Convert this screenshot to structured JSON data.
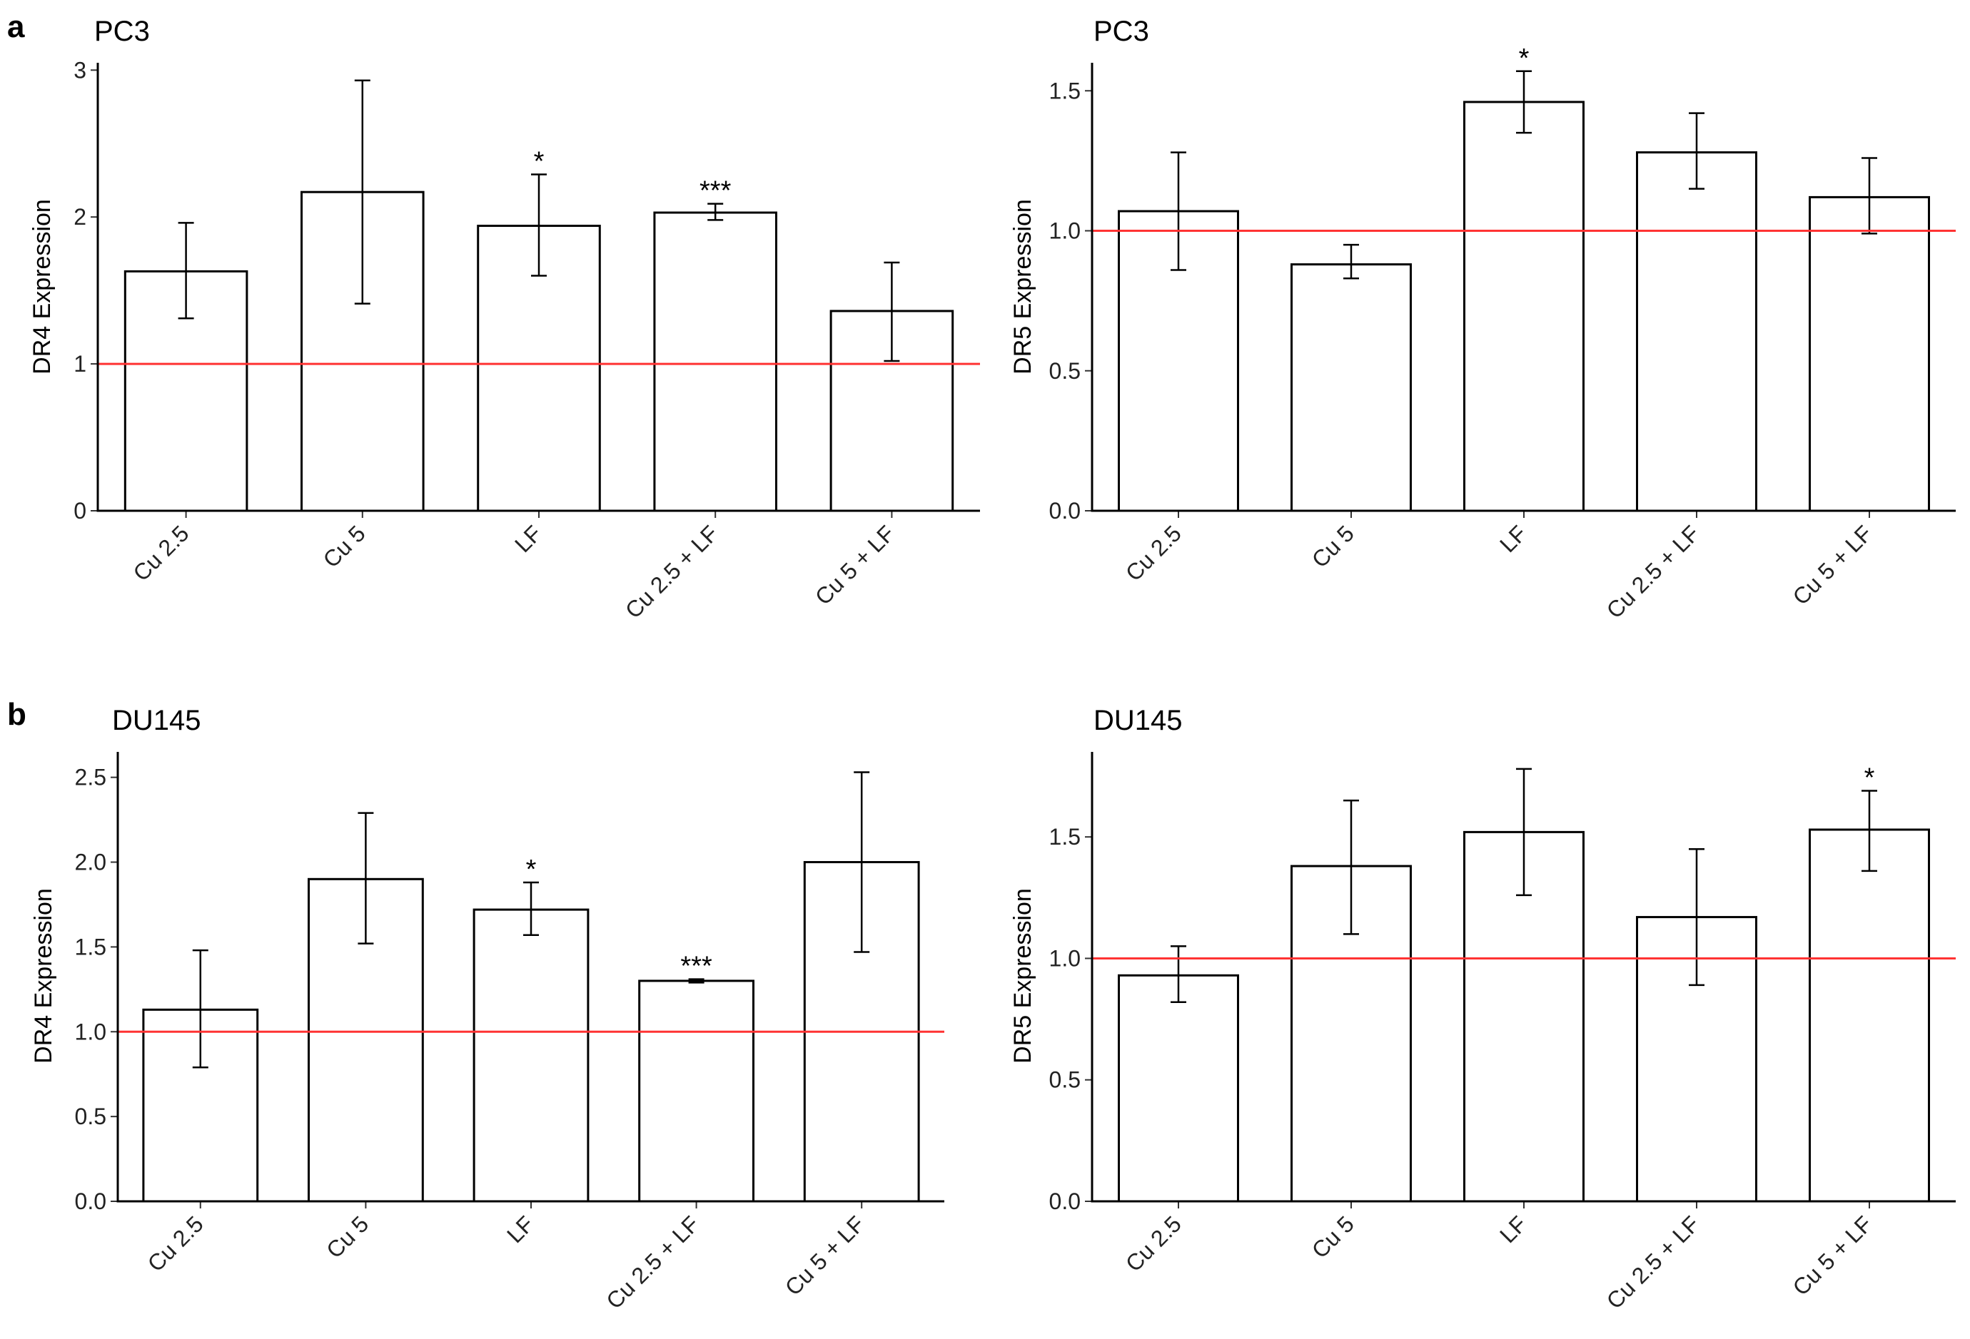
{
  "panels": [
    {
      "letter": "a"
    },
    {
      "letter": "b"
    }
  ],
  "chart_data": [
    {
      "type": "bar",
      "panel": "a",
      "title": "PC3",
      "xlabel": "",
      "ylabel": "DR4 Expression",
      "ylim": [
        0,
        3.05
      ],
      "yticks": [
        0,
        1,
        2,
        3
      ],
      "ytick_labels": [
        "0",
        "1",
        "2",
        "3"
      ],
      "reference_line": 1,
      "reference_color": "#ff3333",
      "categories": [
        "Cu 2.5",
        "Cu 5",
        "LF",
        "Cu 2.5 + LF",
        "Cu 5 + LF"
      ],
      "values": [
        1.63,
        2.17,
        1.94,
        2.03,
        1.36
      ],
      "error_low": [
        1.31,
        1.41,
        1.6,
        1.98,
        1.02
      ],
      "error_high": [
        1.96,
        2.93,
        2.29,
        2.09,
        1.69
      ],
      "significance": [
        "",
        "",
        "*",
        "***",
        ""
      ]
    },
    {
      "type": "bar",
      "panel": "a",
      "title": "PC3",
      "xlabel": "",
      "ylabel": "DR5 Expression",
      "ylim": [
        0,
        1.6
      ],
      "yticks": [
        0,
        0.5,
        1,
        1.5
      ],
      "ytick_labels": [
        "0.0",
        "0.5",
        "1.0",
        "1.5"
      ],
      "reference_line": 1,
      "reference_color": "#ff3333",
      "categories": [
        "Cu 2.5",
        "Cu 5",
        "LF",
        "Cu 2.5 + LF",
        "Cu 5 + LF"
      ],
      "values": [
        1.07,
        0.88,
        1.46,
        1.28,
        1.12
      ],
      "error_low": [
        0.86,
        0.83,
        1.35,
        1.15,
        0.99
      ],
      "error_high": [
        1.28,
        0.95,
        1.57,
        1.42,
        1.26
      ],
      "significance": [
        "",
        "",
        "*",
        "",
        ""
      ]
    },
    {
      "type": "bar",
      "panel": "b",
      "title": "DU145",
      "xlabel": "",
      "ylabel": "DR4 Expression",
      "ylim": [
        0,
        2.65
      ],
      "yticks": [
        0,
        0.5,
        1,
        1.5,
        2,
        2.5
      ],
      "ytick_labels": [
        "0.0",
        "0.5",
        "1.0",
        "1.5",
        "2.0",
        "2.5"
      ],
      "reference_line": 1,
      "reference_color": "#ff3333",
      "categories": [
        "Cu 2.5",
        "Cu 5",
        "LF",
        "Cu 2.5 + LF",
        "Cu 5 + LF"
      ],
      "values": [
        1.13,
        1.9,
        1.72,
        1.3,
        2.0
      ],
      "error_low": [
        0.79,
        1.52,
        1.57,
        1.29,
        1.47
      ],
      "error_high": [
        1.48,
        2.29,
        1.88,
        1.31,
        2.53
      ],
      "significance": [
        "",
        "",
        "*",
        "***",
        ""
      ]
    },
    {
      "type": "bar",
      "panel": "b",
      "title": "DU145",
      "xlabel": "",
      "ylabel": "DR5 Expression",
      "ylim": [
        0,
        1.85
      ],
      "yticks": [
        0,
        0.5,
        1,
        1.5
      ],
      "ytick_labels": [
        "0.0",
        "0.5",
        "1.0",
        "1.5"
      ],
      "reference_line": 1,
      "reference_color": "#ff3333",
      "categories": [
        "Cu 2.5",
        "Cu 5",
        "LF",
        "Cu 2.5 + LF",
        "Cu 5 + LF"
      ],
      "values": [
        0.93,
        1.38,
        1.52,
        1.17,
        1.53
      ],
      "error_low": [
        0.82,
        1.1,
        1.26,
        0.89,
        1.36
      ],
      "error_high": [
        1.05,
        1.65,
        1.78,
        1.45,
        1.69
      ],
      "significance": [
        "",
        "",
        "",
        "",
        "*"
      ]
    }
  ]
}
